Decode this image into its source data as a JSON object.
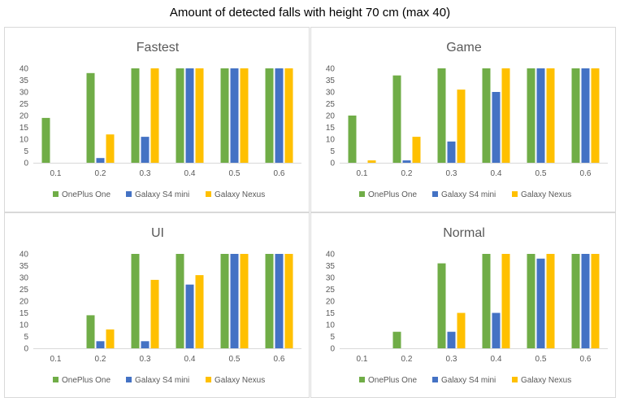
{
  "title": "Amount of detected falls with height 70 cm (max 40)",
  "chart_data": [
    {
      "type": "bar",
      "title": "Fastest",
      "categories": [
        "0.1",
        "0.2",
        "0.3",
        "0.4",
        "0.5",
        "0.6"
      ],
      "ylim": [
        0,
        40
      ],
      "yticks": [
        "0",
        "5",
        "10",
        "15",
        "20",
        "25",
        "30",
        "35",
        "40"
      ],
      "grid": false,
      "legend": "bottom",
      "series": [
        {
          "name": "OnePlus One",
          "color": "#70ad47",
          "values": [
            19,
            38,
            40,
            40,
            40,
            40
          ]
        },
        {
          "name": "Galaxy S4 mini",
          "color": "#4472c4",
          "values": [
            0,
            2,
            11,
            40,
            40,
            40
          ]
        },
        {
          "name": "Galaxy Nexus",
          "color": "#ffc000",
          "values": [
            0,
            12,
            40,
            40,
            40,
            40
          ]
        }
      ]
    },
    {
      "type": "bar",
      "title": "Game",
      "categories": [
        "0.1",
        "0.2",
        "0.3",
        "0.4",
        "0.5",
        "0.6"
      ],
      "ylim": [
        0,
        40
      ],
      "yticks": [
        "0",
        "5",
        "10",
        "15",
        "20",
        "25",
        "30",
        "35",
        "40"
      ],
      "grid": false,
      "legend": "bottom",
      "series": [
        {
          "name": "OnePlus One",
          "color": "#70ad47",
          "values": [
            20,
            37,
            40,
            40,
            40,
            40
          ]
        },
        {
          "name": "Galaxy S4 mini",
          "color": "#4472c4",
          "values": [
            0,
            1,
            9,
            30,
            40,
            40
          ]
        },
        {
          "name": "Galaxy Nexus",
          "color": "#ffc000",
          "values": [
            1,
            11,
            31,
            40,
            40,
            40
          ]
        }
      ]
    },
    {
      "type": "bar",
      "title": "UI",
      "categories": [
        "0.1",
        "0.2",
        "0.3",
        "0.4",
        "0.5",
        "0.6"
      ],
      "ylim": [
        0,
        40
      ],
      "yticks": [
        "0",
        "5",
        "10",
        "15",
        "20",
        "25",
        "30",
        "35",
        "40"
      ],
      "grid": false,
      "legend": "bottom",
      "series": [
        {
          "name": "OnePlus One",
          "color": "#70ad47",
          "values": [
            0,
            14,
            40,
            40,
            40,
            40
          ]
        },
        {
          "name": "Galaxy S4 mini",
          "color": "#4472c4",
          "values": [
            0,
            3,
            3,
            27,
            40,
            40
          ]
        },
        {
          "name": "Galaxy Nexus",
          "color": "#ffc000",
          "values": [
            0,
            8,
            29,
            31,
            40,
            40
          ]
        }
      ]
    },
    {
      "type": "bar",
      "title": "Normal",
      "categories": [
        "0.1",
        "0.2",
        "0.3",
        "0.4",
        "0.5",
        "0.6"
      ],
      "ylim": [
        0,
        40
      ],
      "yticks": [
        "0",
        "5",
        "10",
        "15",
        "20",
        "25",
        "30",
        "35",
        "40"
      ],
      "grid": false,
      "legend": "bottom",
      "series": [
        {
          "name": "OnePlus One",
          "color": "#70ad47",
          "values": [
            0,
            7,
            36,
            40,
            40,
            40
          ]
        },
        {
          "name": "Galaxy S4 mini",
          "color": "#4472c4",
          "values": [
            0,
            0,
            7,
            15,
            38,
            40
          ]
        },
        {
          "name": "Galaxy Nexus",
          "color": "#ffc000",
          "values": [
            0,
            0,
            15,
            40,
            40,
            40
          ]
        }
      ]
    }
  ]
}
